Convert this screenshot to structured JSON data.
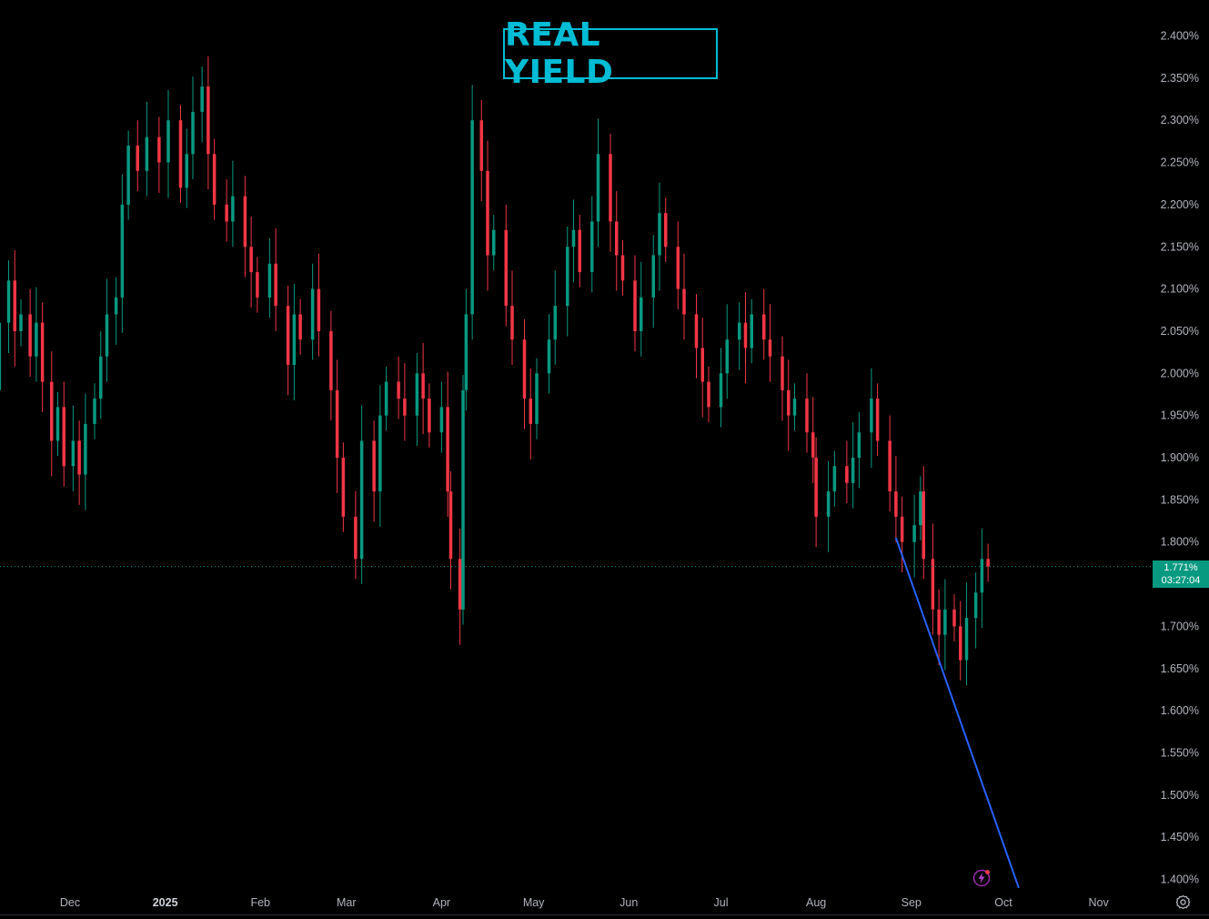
{
  "title": "REAL YIELD",
  "last_price": {
    "value": "1.771%",
    "countdown": "03:27:04"
  },
  "colors": {
    "up": "#089981",
    "down": "#f23645",
    "title": "#00bcd4",
    "trendline": "#2962ff",
    "background": "#000000"
  },
  "icons": [
    "alert-lightning-icon",
    "settings-gear-icon"
  ],
  "chart_data": {
    "type": "candlestick",
    "ylim": [
      1.388,
      2.418
    ],
    "y_ticks": [
      "2.400%",
      "2.350%",
      "2.300%",
      "2.250%",
      "2.200%",
      "2.150%",
      "2.100%",
      "2.050%",
      "2.000%",
      "1.950%",
      "1.900%",
      "1.850%",
      "1.800%",
      "1.750%",
      "1.700%",
      "1.650%",
      "1.600%",
      "1.550%",
      "1.500%",
      "1.450%",
      "1.400%"
    ],
    "x_range": [
      "2024-11-04",
      "2025-11-28"
    ],
    "x_ticks": [
      {
        "label": "Dec",
        "date": "2024-12-01"
      },
      {
        "label": "2025",
        "date": "2025-01-01",
        "bold": true
      },
      {
        "label": "Feb",
        "date": "2025-02-01"
      },
      {
        "label": "Mar",
        "date": "2025-03-01"
      },
      {
        "label": "Apr",
        "date": "2025-04-01"
      },
      {
        "label": "May",
        "date": "2025-05-01"
      },
      {
        "label": "Jun",
        "date": "2025-06-01"
      },
      {
        "label": "Jul",
        "date": "2025-07-01"
      },
      {
        "label": "Aug",
        "date": "2025-08-01"
      },
      {
        "label": "Sep",
        "date": "2025-09-01"
      },
      {
        "label": "Oct",
        "date": "2025-10-01"
      },
      {
        "label": "Nov",
        "date": "2025-11-01"
      }
    ],
    "series": [
      {
        "date": "2024-11-04",
        "close": 2.09
      },
      {
        "date": "2024-11-06",
        "close": 1.98
      },
      {
        "date": "2024-11-08",
        "close": 2.06
      },
      {
        "date": "2024-11-11",
        "close": 2.11
      },
      {
        "date": "2024-11-13",
        "close": 2.05
      },
      {
        "date": "2024-11-15",
        "close": 2.07
      },
      {
        "date": "2024-11-18",
        "close": 2.02
      },
      {
        "date": "2024-11-20",
        "close": 2.06
      },
      {
        "date": "2024-11-22",
        "close": 1.99
      },
      {
        "date": "2024-11-25",
        "close": 1.92
      },
      {
        "date": "2024-11-27",
        "close": 1.96
      },
      {
        "date": "2024-11-29",
        "close": 1.89
      },
      {
        "date": "2024-12-02",
        "close": 1.92
      },
      {
        "date": "2024-12-04",
        "close": 1.88
      },
      {
        "date": "2024-12-06",
        "close": 1.94
      },
      {
        "date": "2024-12-09",
        "close": 1.97
      },
      {
        "date": "2024-12-11",
        "close": 2.02
      },
      {
        "date": "2024-12-13",
        "close": 2.07
      },
      {
        "date": "2024-12-16",
        "close": 2.09
      },
      {
        "date": "2024-12-18",
        "close": 2.2
      },
      {
        "date": "2024-12-20",
        "close": 2.27
      },
      {
        "date": "2024-12-23",
        "close": 2.24
      },
      {
        "date": "2024-12-26",
        "close": 2.28
      },
      {
        "date": "2024-12-30",
        "close": 2.25
      },
      {
        "date": "2025-01-02",
        "close": 2.3
      },
      {
        "date": "2025-01-06",
        "close": 2.22
      },
      {
        "date": "2025-01-08",
        "close": 2.26
      },
      {
        "date": "2025-01-10",
        "close": 2.31
      },
      {
        "date": "2025-01-13",
        "close": 2.34
      },
      {
        "date": "2025-01-15",
        "close": 2.26
      },
      {
        "date": "2025-01-17",
        "close": 2.2
      },
      {
        "date": "2025-01-21",
        "close": 2.18
      },
      {
        "date": "2025-01-23",
        "close": 2.21
      },
      {
        "date": "2025-01-27",
        "close": 2.15
      },
      {
        "date": "2025-01-29",
        "close": 2.12
      },
      {
        "date": "2025-01-31",
        "close": 2.09
      },
      {
        "date": "2025-02-04",
        "close": 2.13
      },
      {
        "date": "2025-02-06",
        "close": 2.08
      },
      {
        "date": "2025-02-10",
        "close": 2.01
      },
      {
        "date": "2025-02-12",
        "close": 2.07
      },
      {
        "date": "2025-02-14",
        "close": 2.04
      },
      {
        "date": "2025-02-18",
        "close": 2.1
      },
      {
        "date": "2025-02-20",
        "close": 2.05
      },
      {
        "date": "2025-02-24",
        "close": 1.98
      },
      {
        "date": "2025-02-26",
        "close": 1.9
      },
      {
        "date": "2025-02-28",
        "close": 1.83
      },
      {
        "date": "2025-03-04",
        "close": 1.78
      },
      {
        "date": "2025-03-06",
        "close": 1.92
      },
      {
        "date": "2025-03-10",
        "close": 1.86
      },
      {
        "date": "2025-03-12",
        "close": 1.95
      },
      {
        "date": "2025-03-14",
        "close": 1.99
      },
      {
        "date": "2025-03-18",
        "close": 1.97
      },
      {
        "date": "2025-03-20",
        "close": 1.95
      },
      {
        "date": "2025-03-24",
        "close": 2.0
      },
      {
        "date": "2025-03-26",
        "close": 1.97
      },
      {
        "date": "2025-03-28",
        "close": 1.93
      },
      {
        "date": "2025-04-01",
        "close": 1.96
      },
      {
        "date": "2025-04-03",
        "close": 1.86
      },
      {
        "date": "2025-04-04",
        "close": 1.78
      },
      {
        "date": "2025-04-07",
        "close": 1.72
      },
      {
        "date": "2025-04-08",
        "close": 1.98
      },
      {
        "date": "2025-04-09",
        "close": 2.07
      },
      {
        "date": "2025-04-11",
        "close": 2.3
      },
      {
        "date": "2025-04-14",
        "close": 2.24
      },
      {
        "date": "2025-04-16",
        "close": 2.14
      },
      {
        "date": "2025-04-18",
        "close": 2.17
      },
      {
        "date": "2025-04-22",
        "close": 2.08
      },
      {
        "date": "2025-04-24",
        "close": 2.04
      },
      {
        "date": "2025-04-28",
        "close": 1.97
      },
      {
        "date": "2025-04-30",
        "close": 1.94
      },
      {
        "date": "2025-05-02",
        "close": 2.0
      },
      {
        "date": "2025-05-06",
        "close": 2.04
      },
      {
        "date": "2025-05-08",
        "close": 2.08
      },
      {
        "date": "2025-05-12",
        "close": 2.15
      },
      {
        "date": "2025-05-14",
        "close": 2.17
      },
      {
        "date": "2025-05-16",
        "close": 2.12
      },
      {
        "date": "2025-05-20",
        "close": 2.18
      },
      {
        "date": "2025-05-22",
        "close": 2.26
      },
      {
        "date": "2025-05-26",
        "close": 2.18
      },
      {
        "date": "2025-05-28",
        "close": 2.14
      },
      {
        "date": "2025-05-30",
        "close": 2.11
      },
      {
        "date": "2025-06-03",
        "close": 2.05
      },
      {
        "date": "2025-06-05",
        "close": 2.09
      },
      {
        "date": "2025-06-09",
        "close": 2.14
      },
      {
        "date": "2025-06-11",
        "close": 2.19
      },
      {
        "date": "2025-06-13",
        "close": 2.15
      },
      {
        "date": "2025-06-17",
        "close": 2.1
      },
      {
        "date": "2025-06-19",
        "close": 2.07
      },
      {
        "date": "2025-06-23",
        "close": 2.03
      },
      {
        "date": "2025-06-25",
        "close": 1.99
      },
      {
        "date": "2025-06-27",
        "close": 1.96
      },
      {
        "date": "2025-07-01",
        "close": 2.0
      },
      {
        "date": "2025-07-03",
        "close": 2.04
      },
      {
        "date": "2025-07-07",
        "close": 2.06
      },
      {
        "date": "2025-07-09",
        "close": 2.03
      },
      {
        "date": "2025-07-11",
        "close": 2.07
      },
      {
        "date": "2025-07-15",
        "close": 2.04
      },
      {
        "date": "2025-07-17",
        "close": 2.02
      },
      {
        "date": "2025-07-21",
        "close": 1.98
      },
      {
        "date": "2025-07-23",
        "close": 1.95
      },
      {
        "date": "2025-07-25",
        "close": 1.97
      },
      {
        "date": "2025-07-29",
        "close": 1.93
      },
      {
        "date": "2025-07-31",
        "close": 1.9
      },
      {
        "date": "2025-08-01",
        "close": 1.83
      },
      {
        "date": "2025-08-05",
        "close": 1.86
      },
      {
        "date": "2025-08-07",
        "close": 1.89
      },
      {
        "date": "2025-08-11",
        "close": 1.87
      },
      {
        "date": "2025-08-13",
        "close": 1.9
      },
      {
        "date": "2025-08-15",
        "close": 1.93
      },
      {
        "date": "2025-08-19",
        "close": 1.97
      },
      {
        "date": "2025-08-21",
        "close": 1.92
      },
      {
        "date": "2025-08-25",
        "close": 1.86
      },
      {
        "date": "2025-08-27",
        "close": 1.83
      },
      {
        "date": "2025-08-29",
        "close": 1.8
      },
      {
        "date": "2025-09-02",
        "close": 1.82
      },
      {
        "date": "2025-09-04",
        "close": 1.86
      },
      {
        "date": "2025-09-05",
        "close": 1.78
      },
      {
        "date": "2025-09-08",
        "close": 1.72
      },
      {
        "date": "2025-09-10",
        "close": 1.69
      },
      {
        "date": "2025-09-12",
        "close": 1.72
      },
      {
        "date": "2025-09-15",
        "close": 1.7
      },
      {
        "date": "2025-09-17",
        "close": 1.66
      },
      {
        "date": "2025-09-19",
        "close": 1.71
      },
      {
        "date": "2025-09-22",
        "close": 1.74
      },
      {
        "date": "2025-09-24",
        "close": 1.78
      },
      {
        "date": "2025-09-26",
        "close": 1.771
      }
    ],
    "trendline": {
      "from": {
        "date": "2025-08-27",
        "value": 1.805
      },
      "to": {
        "date": "2025-10-06",
        "value": 1.39
      },
      "color": "#2962ff"
    },
    "last_price_line": 1.771,
    "grid": false,
    "legend": false
  }
}
